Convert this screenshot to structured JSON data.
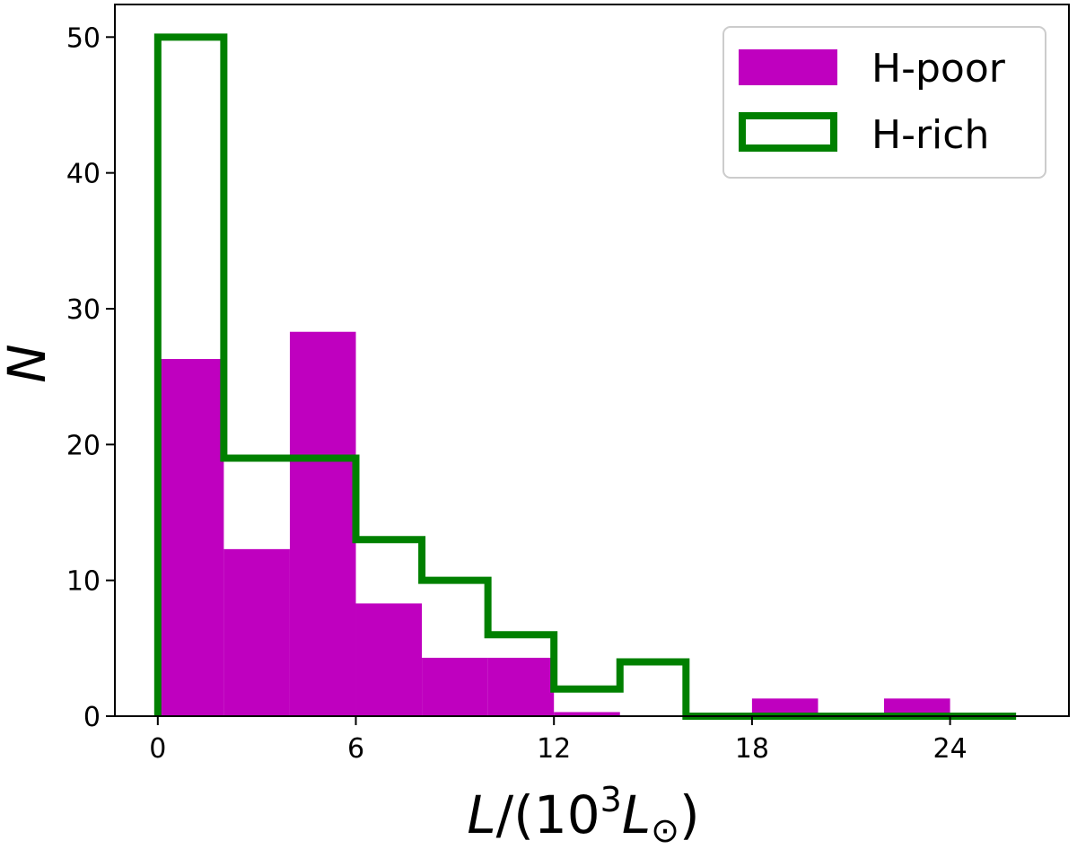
{
  "chart_data": {
    "type": "bar",
    "bin_edges": [
      0,
      2,
      4,
      6,
      8,
      10,
      12,
      14,
      16,
      18,
      20,
      22,
      24,
      26
    ],
    "series": [
      {
        "name": "H-poor",
        "style": "filled",
        "color": "#bf00bf",
        "values": [
          26.3,
          12.3,
          28.3,
          8.3,
          4.3,
          4.3,
          0.3,
          0,
          0,
          1.3,
          0,
          1.3,
          0
        ]
      },
      {
        "name": "H-rich",
        "style": "step",
        "color": "#008000",
        "values": [
          50,
          19,
          19,
          13,
          10,
          6,
          2,
          4,
          0,
          0,
          0,
          0,
          0
        ]
      }
    ],
    "xlim": [
      -1.3,
      27.6
    ],
    "ylim": [
      0,
      52.4
    ],
    "xticks": [
      0,
      6,
      12,
      18,
      24
    ],
    "yticks": [
      0,
      10,
      20,
      30,
      40,
      50
    ],
    "xlabel": {
      "base": "L/(10",
      "sup": "3",
      "var": "L",
      "sub": "⊙",
      "close": ")"
    },
    "ylabel": "N",
    "legend": {
      "position": "top-right",
      "entries": [
        "H-poor",
        "H-rich"
      ]
    }
  }
}
